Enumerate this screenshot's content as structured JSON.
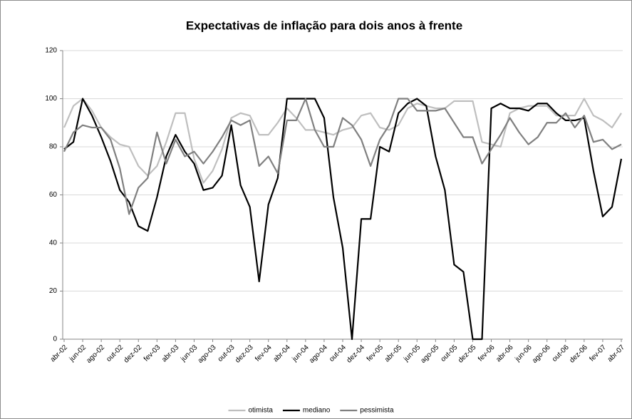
{
  "chart_data": {
    "type": "line",
    "title": "Expectativas de inflação para dois anos à frente",
    "categories": [
      "abr-02",
      null,
      "jun-02",
      null,
      "ago-02",
      null,
      "out-02",
      null,
      "dez-02",
      null,
      "fev-03",
      null,
      "abr-03",
      null,
      "jun-03",
      null,
      "ago-03",
      null,
      "out-03",
      null,
      "dez-03",
      null,
      "fev-04",
      null,
      "abr-04",
      null,
      "jun-04",
      null,
      "ago-04",
      null,
      "out-04",
      null,
      "dez-04",
      null,
      "fev-05",
      null,
      "abr-05",
      null,
      "jun-05",
      null,
      "ago-05",
      null,
      "out-05",
      null,
      "dez-05",
      null,
      "fev-06",
      null,
      "abr-06",
      null,
      "jun-06",
      null,
      "ago-06",
      null,
      "out-06",
      null,
      "dez-06",
      null,
      "fev-07",
      null,
      "abr-07"
    ],
    "series": [
      {
        "name": "otimista",
        "color": "#bfbfbf",
        "values": [
          88,
          97,
          100,
          95,
          88,
          84,
          81,
          80,
          72,
          68,
          72,
          82,
          94,
          94,
          75,
          65,
          70,
          79,
          92,
          94,
          93,
          85,
          85,
          90,
          96,
          92,
          87,
          87,
          86,
          85,
          87,
          88,
          93,
          94,
          88,
          87,
          89,
          96,
          98,
          97,
          96,
          96,
          99,
          99,
          99,
          82,
          81,
          80,
          94,
          96,
          97,
          97,
          97,
          93,
          93,
          93,
          100,
          93,
          91,
          88,
          94
        ]
      },
      {
        "name": "mediano",
        "color": "#000000",
        "values": [
          79,
          82,
          100,
          93,
          84,
          74,
          62,
          57,
          47,
          45,
          59,
          76,
          85,
          78,
          73,
          62,
          63,
          68,
          89,
          64,
          55,
          24,
          56,
          67,
          100,
          100,
          100,
          100,
          92,
          59,
          38,
          0,
          50,
          50,
          80,
          78,
          94,
          98,
          100,
          97,
          76,
          62,
          31,
          28,
          0,
          0,
          96,
          98,
          96,
          96,
          95,
          98,
          98,
          94,
          91,
          91,
          92,
          70,
          51,
          55,
          75
        ]
      },
      {
        "name": "pessimista",
        "color": "#808080",
        "values": [
          78,
          86,
          89,
          88,
          88,
          83,
          71,
          52,
          63,
          67,
          86,
          73,
          83,
          76,
          78,
          73,
          78,
          84,
          91,
          89,
          91,
          72,
          76,
          69,
          91,
          91,
          100,
          87,
          80,
          80,
          92,
          89,
          83,
          72,
          83,
          89,
          100,
          100,
          95,
          95,
          95,
          96,
          90,
          84,
          84,
          73,
          79,
          85,
          92,
          86,
          81,
          84,
          90,
          90,
          94,
          88,
          93,
          82,
          83,
          79,
          81
        ]
      }
    ],
    "ylim": [
      0,
      120
    ],
    "yticks": [
      0,
      20,
      40,
      60,
      80,
      100,
      120
    ],
    "grid": true,
    "legend": "bottom"
  }
}
